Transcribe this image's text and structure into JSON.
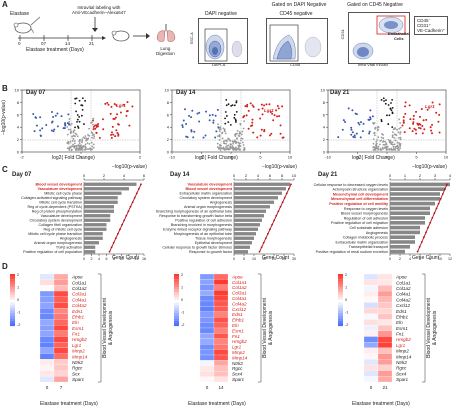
{
  "panels": {
    "A": "A",
    "B": "B",
    "C": "C",
    "D": "D"
  },
  "panelA": {
    "elastase": "Elastase",
    "ticks": [
      "0",
      "07",
      "14",
      "21"
    ],
    "timeline": "Elastase treatment (Days)",
    "intravital": "Intravital labeling with\nAnti-VEcadherin–Alexa647",
    "lung_digestion": "Lung\nDigestion",
    "gate1_title": "DAPI negative",
    "gate1_x": "DAPI-A",
    "gate1_y": "SSC-A",
    "gate2_header": "Gated on DAPI Negative",
    "gate2_title": "CD45 negative",
    "gate2_x": "CD45",
    "gate3_header": "Gated on CD45 Negative",
    "gate3_x": "Intra Vital VEcad",
    "gate3_y": "CD31",
    "gate3_box": "Endothelial\nCells",
    "gate3_label": "CD45⁻\nCD31⁺\nVE-Cadherin⁺"
  },
  "panelB": {
    "ylabel": "−log10(p-value)",
    "xlabel": "log2( Fold Change)",
    "plots": [
      {
        "day": "Day 07",
        "gene": "Lgr1",
        "xticks": [
          "-2",
          "0",
          "2"
        ],
        "yticks": [
          "0",
          "2",
          "4",
          "6",
          "8",
          "10"
        ]
      },
      {
        "day": "Day 14",
        "gene": "Lgr1",
        "xticks": [
          "-10",
          "-5",
          "0",
          "5",
          "10"
        ],
        "yticks": [
          "0",
          "2",
          "4",
          "6",
          "8",
          "10"
        ]
      },
      {
        "day": "Day 21",
        "gene": "Lgr1",
        "xticks": [
          "-10",
          "-5",
          "0",
          "5",
          "10"
        ],
        "yticks": [
          "0",
          "2",
          "4",
          "6",
          "8",
          "10"
        ]
      }
    ]
  },
  "panelC": {
    "top_axis_label": "−log10(p-value)",
    "xlabel": "Gene Count",
    "plots": [
      {
        "day": "Day 07",
        "top_ticks": [
          "0",
          "2",
          "4",
          "6"
        ],
        "bottom_ticks": [
          "0",
          "2",
          "4",
          "6",
          "8",
          "10",
          "12",
          "14",
          "16"
        ],
        "categories": [
          "Blood vessel development",
          "Vasculature development",
          "Mitotic cell cycle phase",
          "Collagen-activated signaling pathway",
          "Mitotic cell cycle transition",
          "Reg of cycle-dependent (PSTKA)",
          "Reg of protein phosphorylation",
          "Vasculature development",
          "Circulatory system development",
          "Collagen fibril organization",
          "Reg of mitotic cell cycle",
          "Mitotic cell cycle phase transition",
          "Angiogenesis",
          "Animal organ morphogenesis",
          "TGFβ activation",
          "Positive regulation of cell population"
        ],
        "red": [
          0,
          1
        ],
        "counts": [
          14,
          12,
          10,
          9,
          9,
          8,
          8,
          7,
          7,
          6,
          6,
          5,
          5,
          4,
          3,
          3
        ]
      },
      {
        "day": "Day 14",
        "top_ticks": [
          "0",
          "2",
          "4",
          "6",
          "8",
          "10"
        ],
        "bottom_ticks": [
          "0",
          "5",
          "10",
          "15",
          "20",
          "25",
          "30"
        ],
        "categories": [
          "Vasculature development",
          "Blood vessel development",
          "Extracellular matrix organization",
          "Circulatory system development",
          "Angiogenesis",
          "Animal organ morphogenesis",
          "Branching morphogenesis of an epithelial tube",
          "Response to transforming growth factor beta",
          "Positive regulation of cell adhesion",
          "Branching involved in morphogenesis",
          "Enzyme linked receptor signaling pathway",
          "Morphogenesis of an epithelial tube",
          "Tissue morphogenesis",
          "Epithelial development",
          "Cellular response to growth factor stimulus",
          "Response to growth factor"
        ],
        "red": [
          0,
          1
        ],
        "counts": [
          28,
          26,
          24,
          22,
          20,
          18,
          16,
          15,
          14,
          13,
          12,
          11,
          10,
          9,
          8,
          7
        ]
      },
      {
        "day": "Day 21",
        "top_ticks": [
          "0",
          "1",
          "2",
          "3",
          "4"
        ],
        "bottom_ticks": [
          "0",
          "2",
          "4",
          "6",
          "8",
          "10",
          "12"
        ],
        "categories": [
          "Cellular response to decreased oxygen levels",
          "Actomyosin structure organization",
          "Mesenchymal cell development",
          "Mesenchymal cell differentiation",
          "Positive regulation of cell motility",
          "Response to oxygen levels",
          "Blood vessel morphogenesis",
          "Regulation of cell adhesion",
          "Positive regulation of cell migration",
          "Cell substrate adhesion",
          "Angiogenesis",
          "Collagen metabolic process",
          "Extracellular matrix organization",
          "Transepithelial transport",
          "Positive regulation of renal sodium excretion"
        ],
        "red": [
          2,
          3,
          4
        ],
        "counts": [
          12,
          11,
          10,
          10,
          9,
          8,
          8,
          7,
          7,
          6,
          6,
          5,
          5,
          4,
          3
        ]
      }
    ]
  },
  "panelD": {
    "side_label": "Blood Vessel Development\n& Angiogenesis",
    "xlabel": "Elastase treatment (Days)",
    "legend_ticks": [
      "2",
      "1",
      "0",
      "-1",
      "-2"
    ],
    "plots": [
      {
        "x": [
          "0",
          "7"
        ],
        "genes": [
          "Apoe",
          "Col1a1",
          "Col1a2",
          "Col3a1",
          "Col4a1",
          "Col4a2",
          "Edn1",
          "Efnb1",
          "Eln",
          "Esm1",
          "Fn1",
          "Hmgb2",
          "Lgr1",
          "Mmp2",
          "Mmp14",
          "Ntrk2",
          "Rgcc",
          "Scx",
          "Sparc"
        ],
        "red": [
          3,
          4,
          5,
          6,
          7,
          8,
          9,
          10,
          11,
          12,
          13,
          14
        ]
      },
      {
        "x": [
          "0",
          "14"
        ],
        "genes": [
          "Apoe",
          "Col1a1",
          "Col1a2",
          "Col3a1",
          "Col4a1",
          "Col4a2",
          "Cxcl12",
          "Edn1",
          "Efnb1",
          "Eln",
          "Esm1",
          "Fn1",
          "Hmgb2",
          "Lgr1",
          "Mmp2",
          "Mmp14",
          "Ntrk2",
          "Rgcc",
          "Scx4",
          "Sparc"
        ],
        "red": [
          0,
          1,
          2,
          3,
          4,
          5,
          6,
          7,
          8,
          9,
          10,
          11,
          12,
          13,
          14,
          15
        ]
      },
      {
        "x": [
          "0",
          "21"
        ],
        "genes": [
          "Apoe",
          "Col1a1",
          "Col1a2",
          "Col4a1",
          "Col4a2",
          "Cxcl12",
          "Edn1",
          "Efnb1",
          "Eln",
          "Esm1",
          "Fn1",
          "Hmgb2",
          "Lgr1",
          "Mmp2",
          "Mmp14",
          "Ntrk2",
          "Rgcc",
          "Scx4",
          "Sparc"
        ],
        "red": [
          11,
          12
        ]
      }
    ]
  },
  "colors": {
    "red": "#d4211d",
    "blue": "#3d5aa8",
    "grey": "#9a9a9a",
    "bar": "#888888",
    "line": "#b0121b"
  }
}
